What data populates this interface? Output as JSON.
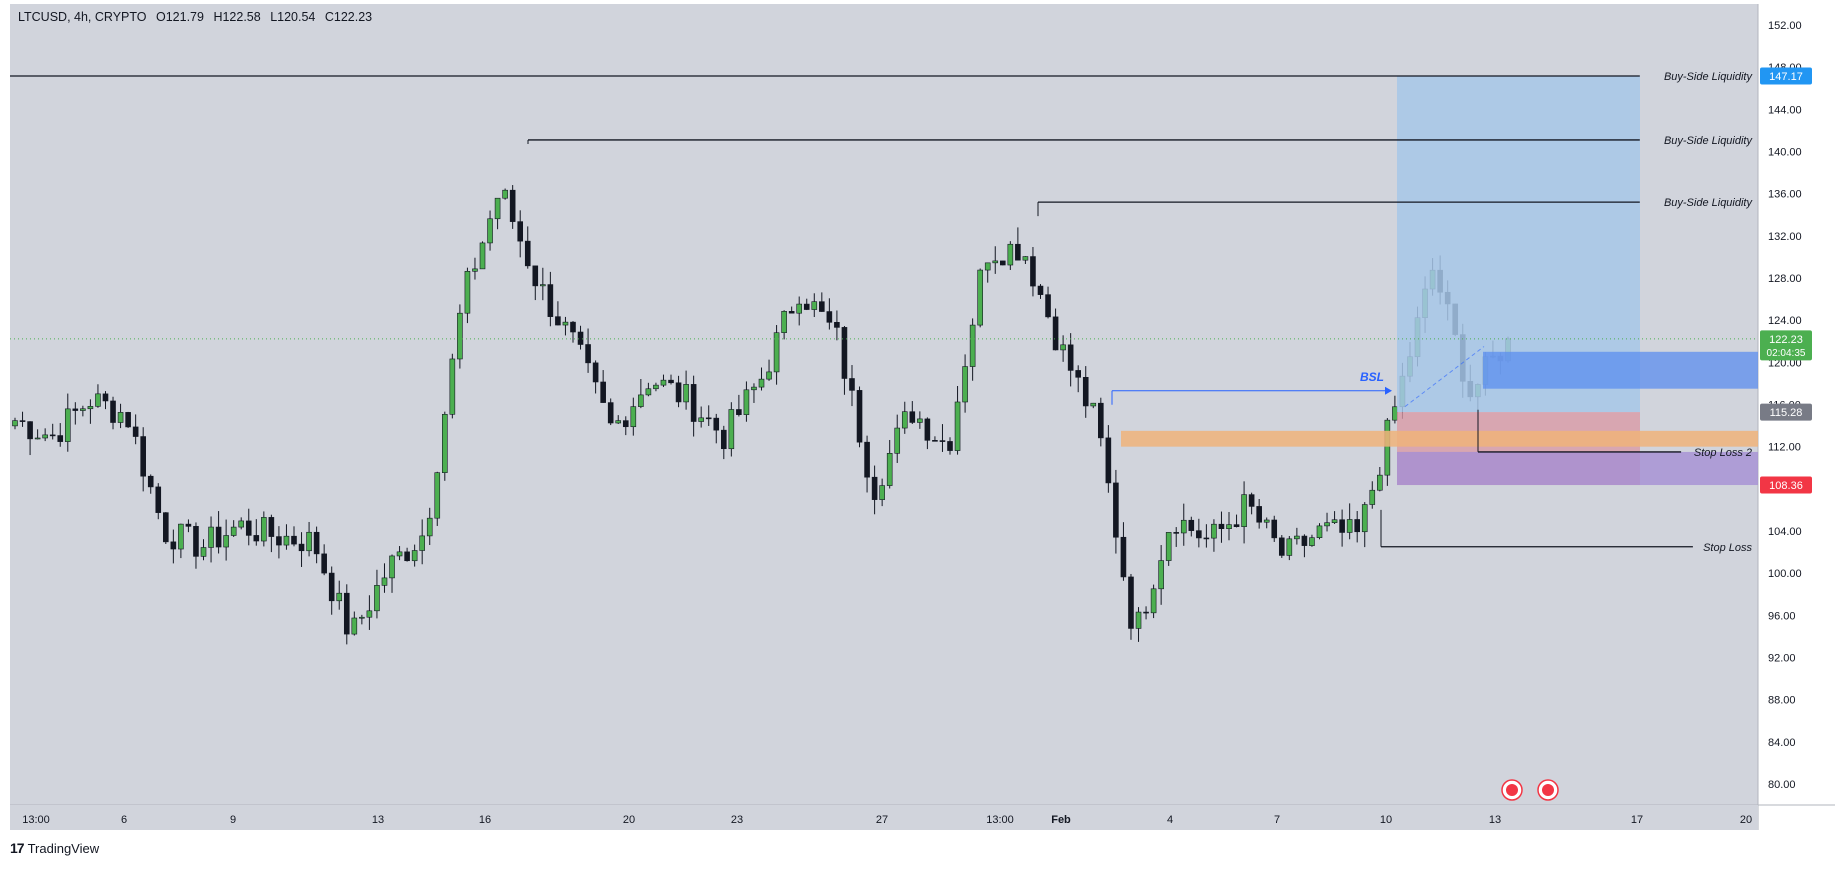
{
  "header": {
    "symbol": "LTCUSD, 4h, CRYPTO",
    "open": "O121.79",
    "high": "H122.58",
    "low": "L120.54",
    "close": "C122.23"
  },
  "brand": {
    "logo_text": "17",
    "name": "TradingView"
  },
  "colors": {
    "background": "#d1d4dc",
    "up_candle": "#4caf50",
    "down_candle": "#131722",
    "price_badge": "#4caf50",
    "buy_liquidity_badge": "#2196f3",
    "stop_badge": "#f23645",
    "gray_badge": "#787b86",
    "target_zone": "#a7c7e7",
    "blue_zone": "#5b8def",
    "orange_zone": "#f0b37a",
    "stop_zone": "#d99aa6",
    "purple_zone": "#a58fd4"
  },
  "chart_data": {
    "type": "candlestick",
    "symbol": "LTCUSD",
    "interval": "4h",
    "ylim": [
      78,
      154
    ],
    "y_ticks": [
      "152.00",
      "148.00",
      "144.00",
      "140.00",
      "136.00",
      "132.00",
      "128.00",
      "124.00",
      "120.00",
      "116.00",
      "112.00",
      "108.00",
      "104.00",
      "100.00",
      "96.00",
      "92.00",
      "88.00",
      "84.00",
      "80.00"
    ],
    "x_ticks": [
      "13:00",
      "6",
      "9",
      "13",
      "16",
      "20",
      "23",
      "27",
      "13:00",
      "Feb",
      "4",
      "7",
      "10",
      "13",
      "17",
      "20"
    ],
    "price_badges": [
      {
        "label": "147.17",
        "value": 147.17,
        "color": "#2196f3"
      },
      {
        "label": "122.23",
        "value": 122.23,
        "sub": "02:04:35",
        "color": "#4caf50"
      },
      {
        "label": "115.28",
        "value": 115.28,
        "color": "#787b86"
      },
      {
        "label": "108.36",
        "value": 108.36,
        "color": "#f23645"
      }
    ],
    "levels": [
      {
        "label": "Buy-Side Liquidity",
        "value": 147.17
      },
      {
        "label": "Buy-Side Liquidity",
        "value": 141.1
      },
      {
        "label": "Buy-Side Liquidity",
        "value": 135.2
      },
      {
        "label": "Stop Loss 2",
        "value": 111.5
      },
      {
        "label": "Stop Loss",
        "value": 102.5
      }
    ],
    "annotations": [
      {
        "label": "BSL",
        "value": 117.3
      }
    ],
    "current_price": 122.23,
    "last_close_points": [
      [
        "2025-01-04",
        114.5
      ],
      [
        "2025-01-05",
        113.0
      ],
      [
        "2025-01-06",
        116.5
      ],
      [
        "2025-01-07",
        115.0
      ],
      [
        "2025-01-08",
        104.0
      ],
      [
        "2025-01-09",
        102.5
      ],
      [
        "2025-01-10",
        104.5
      ],
      [
        "2025-01-11",
        103.5
      ],
      [
        "2025-01-12",
        103.0
      ],
      [
        "2025-01-13",
        94.0
      ],
      [
        "2025-01-14",
        100.5
      ],
      [
        "2025-01-15",
        104.0
      ],
      [
        "2025-01-16",
        126.0
      ],
      [
        "2025-01-17",
        136.5
      ],
      [
        "2025-01-18",
        127.5
      ],
      [
        "2025-01-19",
        121.5
      ],
      [
        "2025-01-20",
        113.5
      ],
      [
        "2025-01-21",
        118.5
      ],
      [
        "2025-01-22",
        116.5
      ],
      [
        "2025-01-23",
        113.0
      ],
      [
        "2025-01-24",
        118.5
      ],
      [
        "2025-01-25",
        127.0
      ],
      [
        "2025-01-26",
        122.5
      ],
      [
        "2025-01-27",
        108.0
      ],
      [
        "2025-01-28",
        115.5
      ],
      [
        "2025-01-29",
        112.0
      ],
      [
        "2025-01-30",
        130.5
      ],
      [
        "2025-01-31",
        131.0
      ],
      [
        "2025-02-01",
        121.5
      ],
      [
        "2025-02-02",
        114.0
      ],
      [
        "2025-02-03",
        94.0
      ],
      [
        "2025-02-04",
        105.5
      ],
      [
        "2025-02-05",
        103.0
      ],
      [
        "2025-02-06",
        106.5
      ],
      [
        "2025-02-07",
        101.5
      ],
      [
        "2025-02-08",
        104.0
      ],
      [
        "2025-02-09",
        103.5
      ],
      [
        "2025-02-10",
        116.0
      ],
      [
        "2025-02-11",
        129.0
      ],
      [
        "2025-02-12",
        117.0
      ],
      [
        "2025-02-13",
        122.23
      ]
    ]
  }
}
